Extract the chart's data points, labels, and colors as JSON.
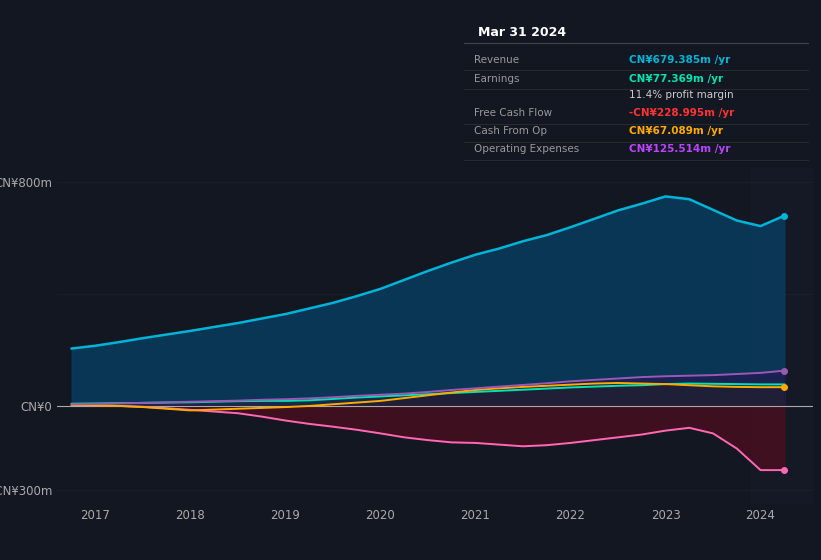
{
  "bg_color": "#131722",
  "plot_bg_color": "#131722",
  "tooltip_bg": "#000000",
  "ylim": [
    -350,
    850
  ],
  "xlim_start": 2016.6,
  "xlim_end": 2024.55,
  "xticks": [
    2017,
    2018,
    2019,
    2020,
    2021,
    2022,
    2023,
    2024
  ],
  "years": [
    2016.75,
    2017.0,
    2017.25,
    2017.5,
    2017.75,
    2018.0,
    2018.25,
    2018.5,
    2018.75,
    2019.0,
    2019.25,
    2019.5,
    2019.75,
    2020.0,
    2020.25,
    2020.5,
    2020.75,
    2021.0,
    2021.25,
    2021.5,
    2021.75,
    2022.0,
    2022.25,
    2022.5,
    2022.75,
    2023.0,
    2023.25,
    2023.5,
    2023.75,
    2024.0,
    2024.25
  ],
  "revenue": [
    205,
    215,
    228,
    242,
    255,
    268,
    282,
    296,
    312,
    328,
    348,
    368,
    392,
    418,
    450,
    482,
    512,
    540,
    562,
    588,
    610,
    638,
    668,
    698,
    722,
    748,
    738,
    700,
    662,
    642,
    679
  ],
  "earnings": [
    8,
    9,
    10,
    11,
    12,
    13,
    15,
    17,
    18,
    18,
    20,
    25,
    30,
    34,
    38,
    42,
    46,
    50,
    54,
    58,
    62,
    66,
    69,
    72,
    74,
    78,
    80,
    79,
    78,
    77,
    77
  ],
  "free_cash_flow": [
    4,
    2,
    0,
    -3,
    -8,
    -14,
    -20,
    -26,
    -38,
    -52,
    -64,
    -74,
    -85,
    -98,
    -112,
    -122,
    -130,
    -132,
    -138,
    -144,
    -140,
    -132,
    -122,
    -112,
    -102,
    -88,
    -78,
    -98,
    -152,
    -229,
    -229
  ],
  "cash_from_op": [
    3,
    2,
    0,
    -4,
    -10,
    -16,
    -13,
    -10,
    -7,
    -4,
    0,
    6,
    12,
    18,
    28,
    38,
    48,
    57,
    63,
    68,
    72,
    76,
    80,
    82,
    80,
    78,
    74,
    70,
    68,
    67,
    67
  ],
  "operating_expenses": [
    6,
    7,
    9,
    11,
    13,
    15,
    17,
    19,
    22,
    24,
    27,
    31,
    36,
    40,
    44,
    50,
    57,
    63,
    69,
    75,
    81,
    88,
    93,
    98,
    103,
    106,
    108,
    110,
    114,
    118,
    126
  ],
  "tooltip": {
    "date": "Mar 31 2024",
    "rows": [
      {
        "label": "Revenue",
        "value": "CN¥679.385m /yr",
        "value_color": "#00b4d8"
      },
      {
        "label": "Earnings",
        "value": "CN¥77.369m /yr",
        "value_color": "#00e5b0"
      },
      {
        "label": "",
        "value": "11.4% profit margin",
        "value_color": "#cccccc"
      },
      {
        "label": "Free Cash Flow",
        "value": "-CN¥228.995m /yr",
        "value_color": "#ff3333"
      },
      {
        "label": "Cash From Op",
        "value": "CN¥67.089m /yr",
        "value_color": "#ffaa00"
      },
      {
        "label": "Operating Expenses",
        "value": "CN¥125.514m /yr",
        "value_color": "#bb44ff"
      }
    ]
  },
  "legend_items": [
    {
      "label": "Revenue",
      "color": "#00b4d8"
    },
    {
      "label": "Earnings",
      "color": "#00e5b0"
    },
    {
      "label": "Free Cash Flow",
      "color": "#ff69b4"
    },
    {
      "label": "Cash From Op",
      "color": "#ffaa00"
    },
    {
      "label": "Operating Expenses",
      "color": "#9b59b6"
    }
  ],
  "revenue_color": "#00b4d8",
  "revenue_fill": "#0a3a5c",
  "earnings_color": "#00e5b0",
  "earnings_fill": "#004d40",
  "fcf_color": "#ff69b4",
  "fcf_fill_neg": "#4a0e1e",
  "cashop_color": "#ffaa00",
  "cashop_fill_pos": "#2a2000",
  "cashop_fill_neg": "#1a1000",
  "opex_color": "#9b59b6",
  "opex_fill": "#2d0a4e",
  "zero_line_color": "#aaaaaa",
  "grid_line_color": "#2a2d3a",
  "text_color": "#aaaaaa",
  "highlight_color": "#1e2235"
}
